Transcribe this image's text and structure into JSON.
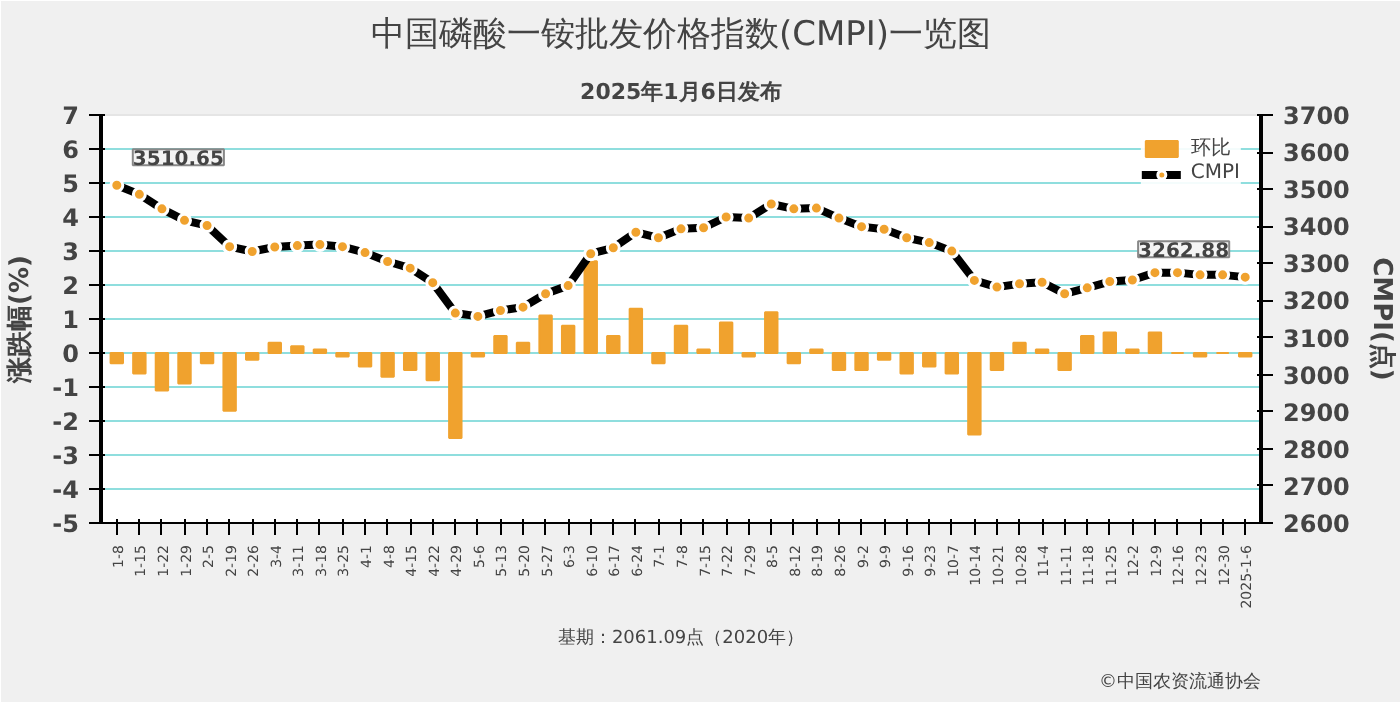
{
  "chart_data": {
    "type": "bar",
    "title": "中国磷酸一铵批发价格指数(CMPI)一览图",
    "subtitle": "2025年1月6日发布",
    "ylabel": "涨跌幅(%)",
    "y2label": "CMPI(点)",
    "categories": [
      "1-8",
      "1-15",
      "1-22",
      "1-29",
      "2-5",
      "2-19",
      "2-26",
      "3-4",
      "3-11",
      "3-18",
      "3-25",
      "4-1",
      "4-8",
      "4-15",
      "4-22",
      "4-29",
      "5-6",
      "5-13",
      "5-20",
      "5-27",
      "6-3",
      "6-10",
      "6-17",
      "6-24",
      "7-1",
      "7-8",
      "7-15",
      "7-22",
      "7-29",
      "8-5",
      "8-12",
      "8-19",
      "8-26",
      "9-2",
      "9-9",
      "9-16",
      "9-23",
      "10-7",
      "10-14",
      "10-21",
      "10-28",
      "11-4",
      "11-11",
      "11-18",
      "11-25",
      "12-2",
      "12-9",
      "12-16",
      "12-23",
      "12-30",
      "2025-1-6"
    ],
    "series": [
      {
        "name": "环比",
        "color": "#f0a22e",
        "values": [
          -0.3,
          -0.6,
          -1.1,
          -0.9,
          -0.3,
          -1.7,
          -0.2,
          0.3,
          0.2,
          0.1,
          -0.1,
          -0.4,
          -0.7,
          -0.5,
          -0.8,
          -2.5,
          -0.1,
          0.5,
          0.3,
          1.1,
          0.8,
          2.7,
          0.5,
          1.3,
          -0.3,
          0.8,
          0.1,
          0.9,
          -0.1,
          1.2,
          -0.3,
          0.1,
          -0.5,
          -0.5,
          -0.2,
          -0.6,
          -0.4,
          -0.6,
          -2.4,
          -0.5,
          0.3,
          0.1,
          -0.5,
          0.5,
          0.6,
          0.1,
          0.6,
          0.0,
          -0.1,
          0.0,
          -0.1
        ]
      },
      {
        "name": "CMPI",
        "type": "line",
        "axis": "y2",
        "color": "#000000",
        "marker": "circle",
        "value_labels": [
          "3510.65",
          null,
          null,
          null,
          null,
          null,
          null,
          null,
          null,
          null,
          null,
          null,
          null,
          null,
          null,
          null,
          null,
          null,
          null,
          null,
          null,
          null,
          null,
          null,
          null,
          null,
          null,
          null,
          null,
          null,
          null,
          null,
          null,
          null,
          null,
          null,
          null,
          null,
          null,
          null,
          null,
          null,
          null,
          null,
          null,
          null,
          null,
          null,
          null,
          null,
          "3262.88"
        ],
        "values": [
          3510.65,
          3486,
          3447,
          3416,
          3402,
          3345,
          3332,
          3344,
          3348,
          3351,
          3345,
          3329,
          3305,
          3287,
          3248,
          3166,
          3157,
          3173,
          3182,
          3218,
          3240,
          3326,
          3342,
          3384,
          3369,
          3393,
          3396,
          3425,
          3422,
          3460,
          3447,
          3449,
          3422,
          3399,
          3392,
          3369,
          3356,
          3333,
          3254,
          3236,
          3245,
          3249,
          3218,
          3234,
          3251,
          3255,
          3275,
          3275,
          3269,
          3269,
          3262.88
        ]
      }
    ],
    "ylim": [
      -5,
      7
    ],
    "yticks": [
      -5,
      -4,
      -3,
      -2,
      -1,
      0,
      1,
      2,
      3,
      4,
      5,
      6,
      7
    ],
    "y2lim": [
      2600,
      3700
    ],
    "y2ticks": [
      2600,
      2700,
      2800,
      2900,
      3000,
      3100,
      3200,
      3300,
      3400,
      3500,
      3600,
      3700
    ],
    "grid": "y",
    "legend": "top right",
    "annotations": [
      "基期：2061.09点（2020年）",
      "©中国农资流通协会"
    ]
  }
}
